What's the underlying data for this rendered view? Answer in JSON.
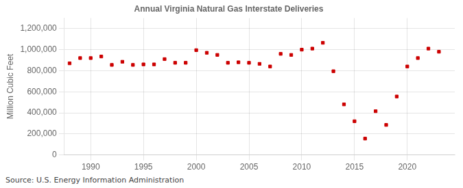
{
  "chart_data": {
    "type": "scatter",
    "title": "Annual Virginia Natural Gas Interstate Deliveries",
    "ylabel": "Million Cubic Feet",
    "annotations": [
      "Source: U.S. Energy Information Administration"
    ],
    "x": [
      1988,
      1989,
      1990,
      1991,
      1992,
      1993,
      1994,
      1995,
      1996,
      1997,
      1998,
      1999,
      2000,
      2001,
      2002,
      2003,
      2004,
      2005,
      2006,
      2007,
      2008,
      2009,
      2010,
      2011,
      2012,
      2013,
      2014,
      2015,
      2016,
      2017,
      2018,
      2019,
      2020,
      2021,
      2022,
      2023
    ],
    "values": [
      870000,
      920000,
      920000,
      935000,
      855000,
      885000,
      855000,
      860000,
      860000,
      910000,
      875000,
      875000,
      995000,
      970000,
      950000,
      875000,
      880000,
      875000,
      865000,
      840000,
      960000,
      950000,
      1000000,
      1010000,
      1065000,
      795000,
      480000,
      320000,
      155000,
      415000,
      285000,
      555000,
      840000,
      920000,
      1010000,
      980000
    ],
    "color": "#cc0000",
    "marker": "square",
    "xlim": [
      1987.5,
      2024.5
    ],
    "xticks": [
      1990,
      1995,
      2000,
      2005,
      2010,
      2015,
      2020
    ],
    "ylim": [
      0,
      1300000
    ],
    "yticks": [
      0,
      {
        "value": 200000,
        "label": "200,000"
      },
      {
        "value": 400000,
        "label": "400,000"
      },
      {
        "value": 600000,
        "label": "600,000"
      },
      {
        "value": 800000,
        "label": "800,000"
      },
      {
        "value": 1000000,
        "label": "1,000,000"
      },
      {
        "value": 1200000,
        "label": "1,200,000"
      }
    ],
    "grid": true
  }
}
